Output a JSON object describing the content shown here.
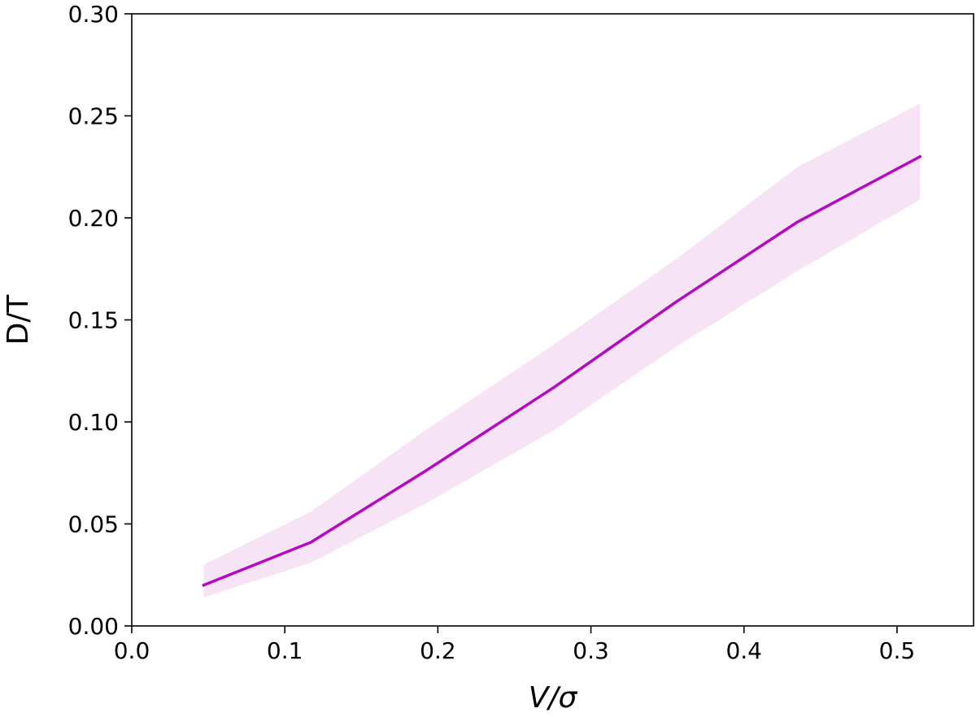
{
  "chart_data": {
    "type": "line",
    "title": "",
    "xlabel": "V/σ",
    "ylabel": "D/T",
    "xlim": [
      0.0,
      0.55
    ],
    "ylim": [
      0.0,
      0.3
    ],
    "xticks": [
      0.0,
      0.1,
      0.2,
      0.3,
      0.4,
      0.5
    ],
    "yticks": [
      0.0,
      0.05,
      0.1,
      0.15,
      0.2,
      0.25,
      0.3
    ],
    "xtick_labels": [
      "0.0",
      "0.1",
      "0.2",
      "0.3",
      "0.4",
      "0.5"
    ],
    "ytick_labels": [
      "0.00",
      "0.05",
      "0.10",
      "0.15",
      "0.20",
      "0.25",
      "0.30"
    ],
    "grid": false,
    "series": [
      {
        "x": [
          0.047,
          0.117,
          0.192,
          0.276,
          0.356,
          0.435,
          0.515
        ],
        "y": [
          0.02,
          0.041,
          0.076,
          0.117,
          0.159,
          0.198,
          0.23
        ],
        "y_lower": [
          0.014,
          0.031,
          0.06,
          0.096,
          0.137,
          0.174,
          0.209
        ],
        "y_upper": [
          0.03,
          0.056,
          0.096,
          0.138,
          0.18,
          0.225,
          0.256
        ],
        "color": "#b30cbf",
        "band_color": "#f6e3f6"
      }
    ]
  }
}
